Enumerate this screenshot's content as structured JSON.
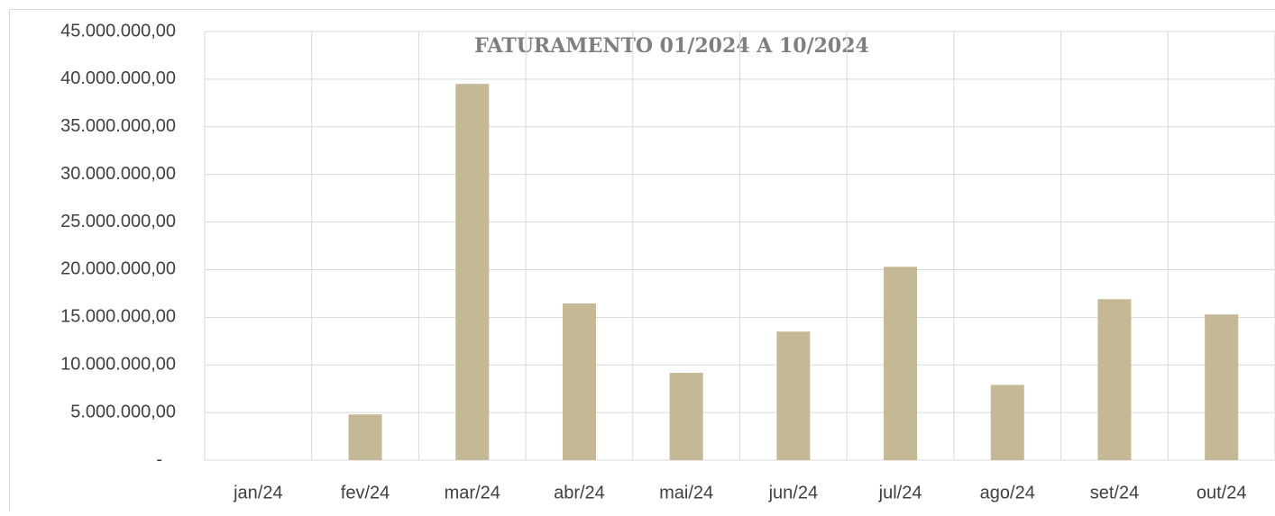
{
  "chart_data": {
    "type": "bar",
    "title": "FATURAMENTO 01/2024 A 10/2024",
    "categories": [
      "jan/24",
      "fev/24",
      "mar/24",
      "abr/24",
      "mai/24",
      "jun/24",
      "jul/24",
      "ago/24",
      "set/24",
      "out/24"
    ],
    "values": [
      0,
      4800000,
      39500000,
      16450000,
      9170000,
      13500000,
      20300000,
      7900000,
      16900000,
      15300000
    ],
    "color": "#c4b994",
    "ylim": [
      0,
      45000000
    ],
    "yticks": [
      {
        "value": 0,
        "label": "-"
      },
      {
        "value": 5000000,
        "label": "5.000.000,00"
      },
      {
        "value": 10000000,
        "label": "10.000.000,00"
      },
      {
        "value": 15000000,
        "label": "15.000.000,00"
      },
      {
        "value": 20000000,
        "label": "20.000.000,00"
      },
      {
        "value": 25000000,
        "label": "25.000.000,00"
      },
      {
        "value": 30000000,
        "label": "30.000.000,00"
      },
      {
        "value": 35000000,
        "label": "35.000.000,00"
      },
      {
        "value": 40000000,
        "label": "40.000.000,00"
      },
      {
        "value": 45000000,
        "label": "45.000.000,00"
      }
    ],
    "grid": true
  }
}
